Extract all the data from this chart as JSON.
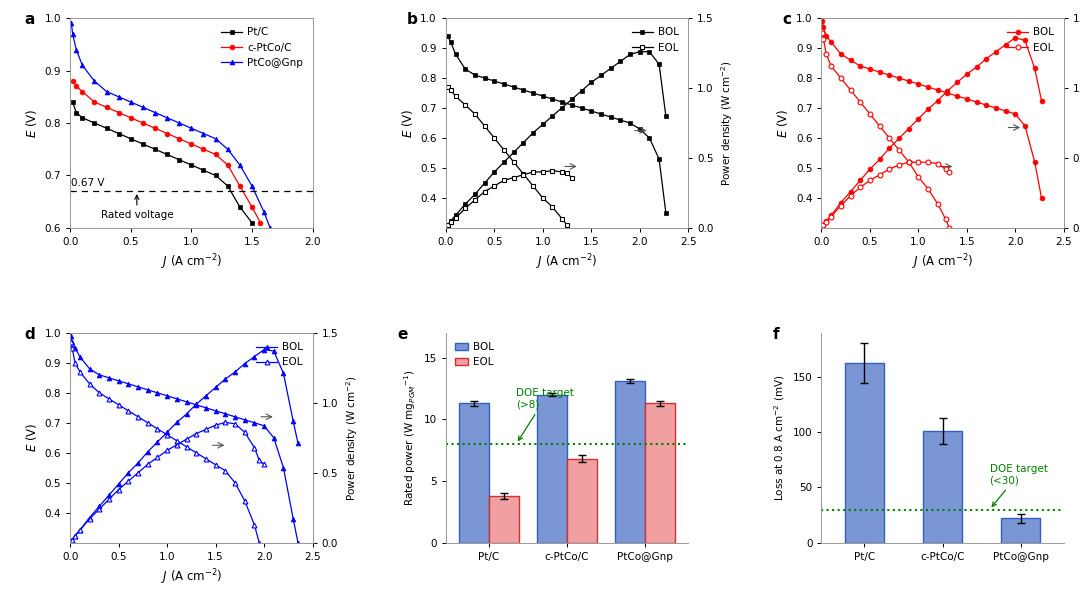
{
  "panel_a": {
    "xlim": [
      0,
      2.0
    ],
    "ylim": [
      0.6,
      1.0
    ],
    "rated_voltage": 0.67,
    "PtC": {
      "J": [
        0.02,
        0.05,
        0.1,
        0.2,
        0.3,
        0.4,
        0.5,
        0.6,
        0.7,
        0.8,
        0.9,
        1.0,
        1.1,
        1.2,
        1.3,
        1.4,
        1.5
      ],
      "E": [
        0.84,
        0.82,
        0.81,
        0.8,
        0.79,
        0.78,
        0.77,
        0.76,
        0.75,
        0.74,
        0.73,
        0.72,
        0.71,
        0.7,
        0.68,
        0.64,
        0.61
      ],
      "color": "black",
      "marker": "s",
      "label": "Pt/C"
    },
    "cPtCoC": {
      "J": [
        0.02,
        0.05,
        0.1,
        0.2,
        0.3,
        0.4,
        0.5,
        0.6,
        0.7,
        0.8,
        0.9,
        1.0,
        1.1,
        1.2,
        1.3,
        1.4,
        1.5,
        1.57
      ],
      "E": [
        0.88,
        0.87,
        0.86,
        0.84,
        0.83,
        0.82,
        0.81,
        0.8,
        0.79,
        0.78,
        0.77,
        0.76,
        0.75,
        0.74,
        0.72,
        0.68,
        0.64,
        0.61
      ],
      "color": "red",
      "marker": "o",
      "label": "c-PtCo/C"
    },
    "PtCoGnp": {
      "J": [
        0.01,
        0.02,
        0.05,
        0.1,
        0.2,
        0.3,
        0.4,
        0.5,
        0.6,
        0.7,
        0.8,
        0.9,
        1.0,
        1.1,
        1.2,
        1.3,
        1.4,
        1.5,
        1.6,
        1.65
      ],
      "E": [
        0.99,
        0.97,
        0.94,
        0.91,
        0.88,
        0.86,
        0.85,
        0.84,
        0.83,
        0.82,
        0.81,
        0.8,
        0.79,
        0.78,
        0.77,
        0.75,
        0.72,
        0.68,
        0.63,
        0.6
      ],
      "color": "blue",
      "marker": "^",
      "label": "PtCo@Gnp"
    }
  },
  "panel_b": {
    "xlim": [
      0,
      2.5
    ],
    "ylim": [
      0.3,
      1.0
    ],
    "ylim2": [
      0,
      1.5
    ],
    "color": "black",
    "BOL_E_J": [
      0.02,
      0.05,
      0.1,
      0.2,
      0.3,
      0.4,
      0.5,
      0.6,
      0.7,
      0.8,
      0.9,
      1.0,
      1.1,
      1.2,
      1.3,
      1.4,
      1.5,
      1.6,
      1.7,
      1.8,
      1.9,
      2.0,
      2.1,
      2.2,
      2.27
    ],
    "BOL_E_V": [
      0.94,
      0.92,
      0.88,
      0.83,
      0.81,
      0.8,
      0.79,
      0.78,
      0.77,
      0.76,
      0.75,
      0.74,
      0.73,
      0.72,
      0.71,
      0.7,
      0.69,
      0.68,
      0.67,
      0.66,
      0.65,
      0.63,
      0.6,
      0.53,
      0.35
    ],
    "BOL_P_J": [
      0.02,
      0.05,
      0.1,
      0.2,
      0.3,
      0.4,
      0.5,
      0.6,
      0.7,
      0.8,
      0.9,
      1.0,
      1.1,
      1.2,
      1.3,
      1.4,
      1.5,
      1.6,
      1.7,
      1.8,
      1.9,
      2.0,
      2.1,
      2.2,
      2.27
    ],
    "BOL_P_W": [
      0.02,
      0.05,
      0.09,
      0.17,
      0.24,
      0.32,
      0.4,
      0.47,
      0.54,
      0.61,
      0.68,
      0.74,
      0.8,
      0.86,
      0.92,
      0.98,
      1.04,
      1.09,
      1.14,
      1.19,
      1.24,
      1.26,
      1.26,
      1.17,
      0.8
    ],
    "EOL_E_J": [
      0.02,
      0.05,
      0.1,
      0.2,
      0.3,
      0.4,
      0.5,
      0.6,
      0.7,
      0.8,
      0.9,
      1.0,
      1.1,
      1.2,
      1.25,
      1.3
    ],
    "EOL_E_V": [
      0.77,
      0.76,
      0.74,
      0.71,
      0.68,
      0.64,
      0.6,
      0.56,
      0.52,
      0.48,
      0.44,
      0.4,
      0.37,
      0.33,
      0.31,
      0.28
    ],
    "EOL_P_J": [
      0.02,
      0.05,
      0.1,
      0.2,
      0.3,
      0.4,
      0.5,
      0.6,
      0.7,
      0.8,
      0.9,
      1.0,
      1.1,
      1.2,
      1.25,
      1.3
    ],
    "EOL_P_W": [
      0.02,
      0.04,
      0.07,
      0.14,
      0.2,
      0.26,
      0.3,
      0.34,
      0.36,
      0.38,
      0.4,
      0.4,
      0.41,
      0.4,
      0.39,
      0.36
    ]
  },
  "panel_c": {
    "xlim": [
      0,
      2.5
    ],
    "ylim": [
      0.3,
      1.0
    ],
    "ylim2": [
      0,
      1.5
    ],
    "color": "red",
    "BOL_E_J": [
      0.01,
      0.02,
      0.05,
      0.1,
      0.2,
      0.3,
      0.4,
      0.5,
      0.6,
      0.7,
      0.8,
      0.9,
      1.0,
      1.1,
      1.2,
      1.3,
      1.4,
      1.5,
      1.6,
      1.7,
      1.8,
      1.9,
      2.0,
      2.1,
      2.2,
      2.27
    ],
    "BOL_E_V": [
      0.99,
      0.97,
      0.94,
      0.92,
      0.88,
      0.86,
      0.84,
      0.83,
      0.82,
      0.81,
      0.8,
      0.79,
      0.78,
      0.77,
      0.76,
      0.75,
      0.74,
      0.73,
      0.72,
      0.71,
      0.7,
      0.69,
      0.68,
      0.64,
      0.52,
      0.4
    ],
    "BOL_P_J": [
      0.01,
      0.02,
      0.05,
      0.1,
      0.2,
      0.3,
      0.4,
      0.5,
      0.6,
      0.7,
      0.8,
      0.9,
      1.0,
      1.1,
      1.2,
      1.3,
      1.4,
      1.5,
      1.6,
      1.7,
      1.8,
      1.9,
      2.0,
      2.1,
      2.2,
      2.27
    ],
    "BOL_P_W": [
      0.01,
      0.02,
      0.05,
      0.09,
      0.18,
      0.26,
      0.34,
      0.42,
      0.49,
      0.57,
      0.64,
      0.71,
      0.78,
      0.85,
      0.91,
      0.98,
      1.04,
      1.1,
      1.15,
      1.21,
      1.26,
      1.31,
      1.36,
      1.34,
      1.14,
      0.91
    ],
    "EOL_E_J": [
      0.01,
      0.02,
      0.05,
      0.1,
      0.2,
      0.3,
      0.4,
      0.5,
      0.6,
      0.7,
      0.8,
      0.9,
      1.0,
      1.1,
      1.2,
      1.28,
      1.32
    ],
    "EOL_E_V": [
      0.95,
      0.93,
      0.88,
      0.84,
      0.8,
      0.76,
      0.72,
      0.68,
      0.64,
      0.6,
      0.56,
      0.52,
      0.47,
      0.43,
      0.38,
      0.33,
      0.3
    ],
    "EOL_P_J": [
      0.01,
      0.02,
      0.05,
      0.1,
      0.2,
      0.3,
      0.4,
      0.5,
      0.6,
      0.7,
      0.8,
      0.9,
      1.0,
      1.1,
      1.2,
      1.28,
      1.32
    ],
    "EOL_P_W": [
      0.01,
      0.02,
      0.04,
      0.08,
      0.16,
      0.23,
      0.29,
      0.34,
      0.38,
      0.42,
      0.45,
      0.47,
      0.47,
      0.47,
      0.46,
      0.42,
      0.4
    ]
  },
  "panel_d": {
    "xlim": [
      0,
      2.5
    ],
    "ylim": [
      0.3,
      1.0
    ],
    "ylim2": [
      0,
      1.5
    ],
    "color": "blue",
    "BOL_E_J": [
      0.01,
      0.02,
      0.05,
      0.1,
      0.2,
      0.3,
      0.4,
      0.5,
      0.6,
      0.7,
      0.8,
      0.9,
      1.0,
      1.1,
      1.2,
      1.3,
      1.4,
      1.5,
      1.6,
      1.7,
      1.8,
      1.9,
      2.0,
      2.1,
      2.2,
      2.3,
      2.35
    ],
    "BOL_E_V": [
      0.99,
      0.97,
      0.95,
      0.92,
      0.88,
      0.86,
      0.85,
      0.84,
      0.83,
      0.82,
      0.81,
      0.8,
      0.79,
      0.78,
      0.77,
      0.76,
      0.75,
      0.74,
      0.73,
      0.72,
      0.71,
      0.7,
      0.69,
      0.65,
      0.55,
      0.38,
      0.3
    ],
    "BOL_P_J": [
      0.01,
      0.02,
      0.05,
      0.1,
      0.2,
      0.3,
      0.4,
      0.5,
      0.6,
      0.7,
      0.8,
      0.9,
      1.0,
      1.1,
      1.2,
      1.3,
      1.4,
      1.5,
      1.6,
      1.7,
      1.8,
      1.9,
      2.0,
      2.1,
      2.2,
      2.3,
      2.35
    ],
    "BOL_P_W": [
      0.01,
      0.02,
      0.05,
      0.09,
      0.18,
      0.26,
      0.34,
      0.42,
      0.5,
      0.57,
      0.65,
      0.72,
      0.79,
      0.86,
      0.92,
      0.99,
      1.05,
      1.11,
      1.17,
      1.22,
      1.28,
      1.33,
      1.38,
      1.37,
      1.21,
      0.87,
      0.71
    ],
    "EOL_E_J": [
      0.01,
      0.02,
      0.05,
      0.1,
      0.2,
      0.3,
      0.4,
      0.5,
      0.6,
      0.7,
      0.8,
      0.9,
      1.0,
      1.1,
      1.2,
      1.3,
      1.4,
      1.5,
      1.6,
      1.7,
      1.8,
      1.9,
      1.95,
      2.0
    ],
    "EOL_E_V": [
      0.97,
      0.95,
      0.9,
      0.87,
      0.83,
      0.8,
      0.78,
      0.76,
      0.74,
      0.72,
      0.7,
      0.68,
      0.66,
      0.64,
      0.62,
      0.6,
      0.58,
      0.56,
      0.54,
      0.5,
      0.44,
      0.36,
      0.3,
      0.28
    ],
    "EOL_P_J": [
      0.01,
      0.02,
      0.05,
      0.1,
      0.2,
      0.3,
      0.4,
      0.5,
      0.6,
      0.7,
      0.8,
      0.9,
      1.0,
      1.1,
      1.2,
      1.3,
      1.4,
      1.5,
      1.6,
      1.7,
      1.8,
      1.9,
      1.95,
      2.0
    ],
    "EOL_P_W": [
      0.01,
      0.02,
      0.05,
      0.09,
      0.17,
      0.24,
      0.31,
      0.38,
      0.44,
      0.5,
      0.56,
      0.61,
      0.66,
      0.7,
      0.74,
      0.78,
      0.81,
      0.84,
      0.86,
      0.85,
      0.79,
      0.68,
      0.59,
      0.56
    ]
  },
  "panel_e": {
    "ylabel": "Rated power (W mg$_{PGM}$$^{-1}$)",
    "categories": [
      "Pt/C",
      "c-PtCo/C",
      "PtCo@Gnp"
    ],
    "BOL_values": [
      11.3,
      12.0,
      13.1
    ],
    "EOL_values": [
      3.8,
      6.8,
      11.3
    ],
    "BOL_errors": [
      0.2,
      0.15,
      0.15
    ],
    "EOL_errors": [
      0.25,
      0.3,
      0.2
    ],
    "BOL_color": "#7b96d4",
    "EOL_color": "#f0a0a0",
    "BOL_edgecolor": "#3060c0",
    "EOL_edgecolor": "#d03030",
    "DOE_target": 8.0,
    "DOE_label_line1": "DOE target",
    "DOE_label_line2": "(>8)",
    "ylim": [
      0,
      17
    ],
    "yticks": [
      0,
      5,
      10,
      15
    ]
  },
  "panel_f": {
    "ylabel": "Loss at 0.8 A cm$^{-2}$ (mV)",
    "categories": [
      "Pt/C",
      "c-PtCo/C",
      "PtCo@Gnp"
    ],
    "values": [
      163,
      101,
      22
    ],
    "errors": [
      18,
      12,
      4
    ],
    "bar_color": "#7b96d4",
    "bar_edgecolor": "#3060c0",
    "DOE_target": 30,
    "DOE_label_line1": "DOE target",
    "DOE_label_line2": "(<30)",
    "ylim": [
      0,
      190
    ],
    "yticks": [
      0,
      50,
      100,
      150
    ]
  },
  "bg_color": "white"
}
